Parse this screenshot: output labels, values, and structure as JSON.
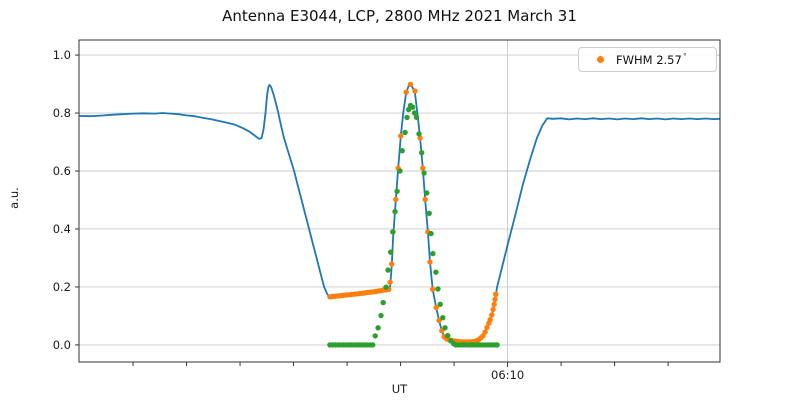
{
  "title": "Antenna E3044, LCP, 2800 MHz 2021 March 31",
  "colors": {
    "signal_line": "#1f77b4",
    "measured_dots": "#ff7f0e",
    "fit_dots": "#2ca02c",
    "grid": "#c8c8c8",
    "spine": "#333333",
    "text": "#1a1a1a"
  },
  "chart_data": {
    "type": "line",
    "title": "Antenna E3044, LCP, 2800 MHz 2021 March 31",
    "xlabel": "UT",
    "ylabel": "a.u.",
    "grid": true,
    "x_axis": {
      "unit": "minutes after 06:00 UT",
      "min": -6.02,
      "max": 17.94,
      "minor_ticks": [
        -4,
        -2,
        0,
        2,
        4,
        6,
        8,
        12,
        14,
        16
      ],
      "major_ticks": [
        {
          "t": 10,
          "label": "06:10"
        }
      ]
    },
    "y_axis": {
      "min": -0.059,
      "max": 1.052,
      "ticks": [
        {
          "v": 0.0,
          "label": "0.0"
        },
        {
          "v": 0.2,
          "label": "0.2"
        },
        {
          "v": 0.4,
          "label": "0.4"
        },
        {
          "v": 0.6,
          "label": "0.6"
        },
        {
          "v": 0.8,
          "label": "0.8"
        },
        {
          "v": 1.0,
          "label": "1.0"
        }
      ]
    },
    "legend": {
      "position": "upper right",
      "entries": [
        {
          "label": "FWHM 2.57",
          "degree_symbol": "°",
          "marker": "dot",
          "color": "#ff7f0e"
        }
      ]
    },
    "series": [
      {
        "name": "antenna-signal",
        "type": "line",
        "color": "#1f77b4",
        "width": 1.8,
        "points": [
          [
            -6.02,
            0.79
          ],
          [
            -5.6,
            0.789
          ],
          [
            -5.2,
            0.791
          ],
          [
            -4.8,
            0.794
          ],
          [
            -4.4,
            0.796
          ],
          [
            -4.0,
            0.798
          ],
          [
            -3.6,
            0.799
          ],
          [
            -3.2,
            0.798
          ],
          [
            -2.9,
            0.8
          ],
          [
            -2.6,
            0.798
          ],
          [
            -2.3,
            0.796
          ],
          [
            -2.0,
            0.792
          ],
          [
            -1.7,
            0.789
          ],
          [
            -1.4,
            0.784
          ],
          [
            -1.1,
            0.779
          ],
          [
            -0.8,
            0.773
          ],
          [
            -0.5,
            0.767
          ],
          [
            -0.2,
            0.76
          ],
          [
            0.1,
            0.748
          ],
          [
            0.35,
            0.736
          ],
          [
            0.55,
            0.722
          ],
          [
            0.71,
            0.711
          ],
          [
            0.8,
            0.713
          ],
          [
            0.88,
            0.745
          ],
          [
            0.95,
            0.8
          ],
          [
            1.01,
            0.862
          ],
          [
            1.06,
            0.89
          ],
          [
            1.1,
            0.897
          ],
          [
            1.16,
            0.89
          ],
          [
            1.24,
            0.868
          ],
          [
            1.33,
            0.838
          ],
          [
            1.42,
            0.805
          ],
          [
            1.52,
            0.762
          ],
          [
            1.64,
            0.715
          ],
          [
            1.78,
            0.672
          ],
          [
            1.9,
            0.636
          ],
          [
            2.02,
            0.6
          ],
          [
            2.16,
            0.55
          ],
          [
            2.3,
            0.5
          ],
          [
            2.44,
            0.45
          ],
          [
            2.58,
            0.4
          ],
          [
            2.72,
            0.35
          ],
          [
            2.86,
            0.3
          ],
          [
            3.0,
            0.25
          ],
          [
            3.14,
            0.2
          ],
          [
            3.26,
            0.175
          ],
          [
            3.36,
            0.166
          ],
          [
            3.7,
            0.169
          ],
          [
            4.1,
            0.173
          ],
          [
            4.5,
            0.178
          ],
          [
            4.9,
            0.182
          ],
          [
            5.3,
            0.188
          ],
          [
            5.61,
            0.2
          ],
          [
            5.67,
            0.27
          ],
          [
            5.72,
            0.37
          ],
          [
            5.82,
            0.5
          ],
          [
            5.91,
            0.61
          ],
          [
            6.01,
            0.72
          ],
          [
            6.1,
            0.8
          ],
          [
            6.21,
            0.87
          ],
          [
            6.3,
            0.893
          ],
          [
            6.37,
            0.897
          ],
          [
            6.45,
            0.888
          ],
          [
            6.54,
            0.868
          ],
          [
            6.64,
            0.79
          ],
          [
            6.73,
            0.714
          ],
          [
            6.83,
            0.61
          ],
          [
            6.92,
            0.5
          ],
          [
            7.02,
            0.39
          ],
          [
            7.1,
            0.286
          ],
          [
            7.2,
            0.192
          ],
          [
            7.33,
            0.129
          ],
          [
            7.44,
            0.084
          ],
          [
            7.54,
            0.049
          ],
          [
            7.63,
            0.028
          ],
          [
            7.75,
            0.019
          ],
          [
            7.9,
            0.014
          ],
          [
            8.1,
            0.011
          ],
          [
            8.3,
            0.01
          ],
          [
            8.5,
            0.009
          ],
          [
            8.7,
            0.011
          ],
          [
            8.9,
            0.016
          ],
          [
            9.05,
            0.026
          ],
          [
            9.2,
            0.05
          ],
          [
            9.35,
            0.085
          ],
          [
            9.46,
            0.12
          ],
          [
            9.53,
            0.155
          ],
          [
            9.61,
            0.2
          ],
          [
            9.8,
            0.27
          ],
          [
            10.0,
            0.345
          ],
          [
            10.28,
            0.445
          ],
          [
            10.56,
            0.55
          ],
          [
            10.84,
            0.64
          ],
          [
            11.1,
            0.715
          ],
          [
            11.3,
            0.757
          ],
          [
            11.48,
            0.782
          ],
          [
            11.7,
            0.78
          ],
          [
            12.0,
            0.782
          ],
          [
            12.3,
            0.778
          ],
          [
            12.6,
            0.781
          ],
          [
            12.9,
            0.779
          ],
          [
            13.2,
            0.782
          ],
          [
            13.5,
            0.779
          ],
          [
            13.8,
            0.781
          ],
          [
            14.1,
            0.778
          ],
          [
            14.4,
            0.781
          ],
          [
            14.7,
            0.779
          ],
          [
            15.0,
            0.782
          ],
          [
            15.3,
            0.779
          ],
          [
            15.6,
            0.781
          ],
          [
            15.9,
            0.778
          ],
          [
            16.2,
            0.781
          ],
          [
            16.5,
            0.779
          ],
          [
            16.8,
            0.781
          ],
          [
            17.1,
            0.779
          ],
          [
            17.4,
            0.781
          ],
          [
            17.7,
            0.779
          ],
          [
            17.94,
            0.78
          ]
        ]
      },
      {
        "name": "measured-scan-dots",
        "type": "scatter",
        "color": "#ff7f0e",
        "radius": 2.7,
        "points": [
          [
            3.36,
            0.166
          ],
          [
            3.46,
            0.167
          ],
          [
            3.56,
            0.168
          ],
          [
            3.66,
            0.169
          ],
          [
            3.76,
            0.17
          ],
          [
            3.86,
            0.171
          ],
          [
            3.96,
            0.172
          ],
          [
            4.06,
            0.173
          ],
          [
            4.16,
            0.174
          ],
          [
            4.26,
            0.175
          ],
          [
            4.36,
            0.176
          ],
          [
            4.46,
            0.177
          ],
          [
            4.56,
            0.178
          ],
          [
            4.66,
            0.179
          ],
          [
            4.76,
            0.181
          ],
          [
            4.86,
            0.182
          ],
          [
            4.96,
            0.183
          ],
          [
            5.06,
            0.184
          ],
          [
            5.16,
            0.186
          ],
          [
            5.26,
            0.187
          ],
          [
            5.36,
            0.189
          ],
          [
            5.46,
            0.19
          ],
          [
            5.56,
            0.192
          ],
          [
            5.61,
            0.216
          ],
          [
            5.67,
            0.279
          ],
          [
            5.72,
            0.39
          ],
          [
            5.82,
            0.502
          ],
          [
            5.91,
            0.61
          ],
          [
            6.01,
            0.721
          ],
          [
            6.21,
            0.872
          ],
          [
            6.37,
            0.899
          ],
          [
            6.54,
            0.876
          ],
          [
            6.73,
            0.714
          ],
          [
            6.83,
            0.61
          ],
          [
            6.92,
            0.502
          ],
          [
            7.02,
            0.39
          ],
          [
            7.1,
            0.286
          ],
          [
            7.2,
            0.192
          ],
          [
            7.33,
            0.129
          ],
          [
            7.44,
            0.084
          ],
          [
            7.54,
            0.049
          ],
          [
            7.63,
            0.028
          ],
          [
            7.72,
            0.021
          ],
          [
            7.8,
            0.018
          ],
          [
            7.88,
            0.016
          ],
          [
            7.96,
            0.014
          ],
          [
            8.04,
            0.013
          ],
          [
            8.12,
            0.012
          ],
          [
            8.2,
            0.011
          ],
          [
            8.28,
            0.01
          ],
          [
            8.36,
            0.01
          ],
          [
            8.44,
            0.01
          ],
          [
            8.52,
            0.01
          ],
          [
            8.6,
            0.01
          ],
          [
            8.68,
            0.011
          ],
          [
            8.76,
            0.012
          ],
          [
            8.84,
            0.014
          ],
          [
            8.92,
            0.018
          ],
          [
            9.0,
            0.024
          ],
          [
            9.08,
            0.031
          ],
          [
            9.16,
            0.044
          ],
          [
            9.23,
            0.06
          ],
          [
            9.3,
            0.075
          ],
          [
            9.35,
            0.087
          ],
          [
            9.41,
            0.103
          ],
          [
            9.46,
            0.122
          ],
          [
            9.5,
            0.14
          ],
          [
            9.53,
            0.157
          ],
          [
            9.56,
            0.175
          ]
        ]
      },
      {
        "name": "gaussian-fit-dots",
        "type": "scatter",
        "color": "#2ca02c",
        "radius": 2.7,
        "points": [
          [
            3.36,
            0.0
          ],
          [
            3.46,
            0.0
          ],
          [
            3.56,
            0.0
          ],
          [
            3.66,
            0.0
          ],
          [
            3.76,
            0.0
          ],
          [
            3.86,
            0.0
          ],
          [
            3.96,
            0.0
          ],
          [
            4.06,
            0.0
          ],
          [
            4.16,
            0.0
          ],
          [
            4.26,
            0.0
          ],
          [
            4.36,
            0.0
          ],
          [
            4.46,
            0.0
          ],
          [
            4.56,
            0.0
          ],
          [
            4.66,
            0.0
          ],
          [
            4.76,
            0.0
          ],
          [
            4.86,
            0.0
          ],
          [
            4.96,
            0.0
          ],
          [
            5.05,
            0.031
          ],
          [
            5.16,
            0.059
          ],
          [
            5.27,
            0.101
          ],
          [
            5.35,
            0.146
          ],
          [
            5.46,
            0.199
          ],
          [
            5.53,
            0.258
          ],
          [
            5.63,
            0.32
          ],
          [
            5.71,
            0.39
          ],
          [
            5.79,
            0.46
          ],
          [
            5.87,
            0.53
          ],
          [
            5.98,
            0.6
          ],
          [
            6.06,
            0.67
          ],
          [
            6.17,
            0.733
          ],
          [
            6.24,
            0.785
          ],
          [
            6.3,
            0.812
          ],
          [
            6.37,
            0.826
          ],
          [
            6.45,
            0.82
          ],
          [
            6.52,
            0.8
          ],
          [
            6.6,
            0.785
          ],
          [
            6.69,
            0.728
          ],
          [
            6.79,
            0.663
          ],
          [
            6.88,
            0.593
          ],
          [
            6.98,
            0.524
          ],
          [
            7.07,
            0.454
          ],
          [
            7.14,
            0.384
          ],
          [
            7.21,
            0.315
          ],
          [
            7.32,
            0.251
          ],
          [
            7.4,
            0.193
          ],
          [
            7.48,
            0.14
          ],
          [
            7.58,
            0.094
          ],
          [
            7.66,
            0.059
          ],
          [
            7.76,
            0.032
          ],
          [
            7.88,
            0.014
          ],
          [
            7.98,
            0.005
          ],
          [
            8.06,
            0.0
          ],
          [
            8.16,
            0.0
          ],
          [
            8.26,
            0.0
          ],
          [
            8.36,
            0.0
          ],
          [
            8.46,
            0.0
          ],
          [
            8.56,
            0.0
          ],
          [
            8.66,
            0.0
          ],
          [
            8.76,
            0.0
          ],
          [
            8.86,
            0.0
          ],
          [
            8.96,
            0.0
          ],
          [
            9.06,
            0.0
          ],
          [
            9.16,
            0.0
          ],
          [
            9.26,
            0.0
          ],
          [
            9.36,
            0.0
          ],
          [
            9.46,
            0.0
          ],
          [
            9.56,
            0.0
          ],
          [
            9.61,
            0.0
          ]
        ]
      }
    ]
  }
}
